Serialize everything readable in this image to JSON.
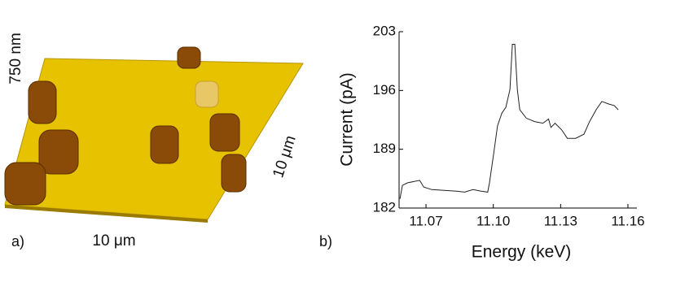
{
  "panel_a": {
    "label": "a)",
    "z_scale": "750 nm",
    "x_scale": "10 μm",
    "y_scale": "10 μm"
  },
  "chart_data": {
    "type": "line",
    "panel_label": "b)",
    "x_label": "Energy (keV)",
    "y_label": "Current (pA)",
    "x": [
      11.0584,
      11.0595,
      11.0617,
      11.0672,
      11.069,
      11.0726,
      11.0781,
      11.0836,
      11.0873,
      11.0909,
      11.0946,
      11.0975,
      11.0983,
      11.1001,
      11.1019,
      11.1038,
      11.1056,
      11.1074,
      11.1085,
      11.1096,
      11.1107,
      11.1118,
      11.1147,
      11.1184,
      11.1221,
      11.1246,
      11.1257,
      11.1275,
      11.1305,
      11.133,
      11.1367,
      11.1404,
      11.1429,
      11.1458,
      11.1484,
      11.1513,
      11.1539,
      11.1557
    ],
    "values": [
      183.1,
      184.7,
      185.0,
      185.3,
      184.5,
      184.2,
      184.1,
      184.0,
      183.9,
      184.2,
      184.0,
      183.9,
      185.0,
      188.4,
      191.8,
      193.3,
      194.0,
      196.1,
      201.5,
      201.5,
      196.1,
      193.7,
      192.7,
      192.3,
      192.1,
      192.6,
      191.6,
      192.1,
      191.3,
      190.3,
      190.3,
      190.8,
      192.3,
      193.7,
      194.7,
      194.4,
      194.2,
      193.7
    ],
    "color": "#222222",
    "xlim": [
      11.058,
      11.164
    ],
    "xticks": [
      11.07,
      {
        "value": 11.1,
        "label": "11.10"
      },
      11.13,
      11.16
    ],
    "ylim": [
      182,
      203
    ],
    "yticks": [
      182,
      189,
      196,
      203
    ]
  }
}
